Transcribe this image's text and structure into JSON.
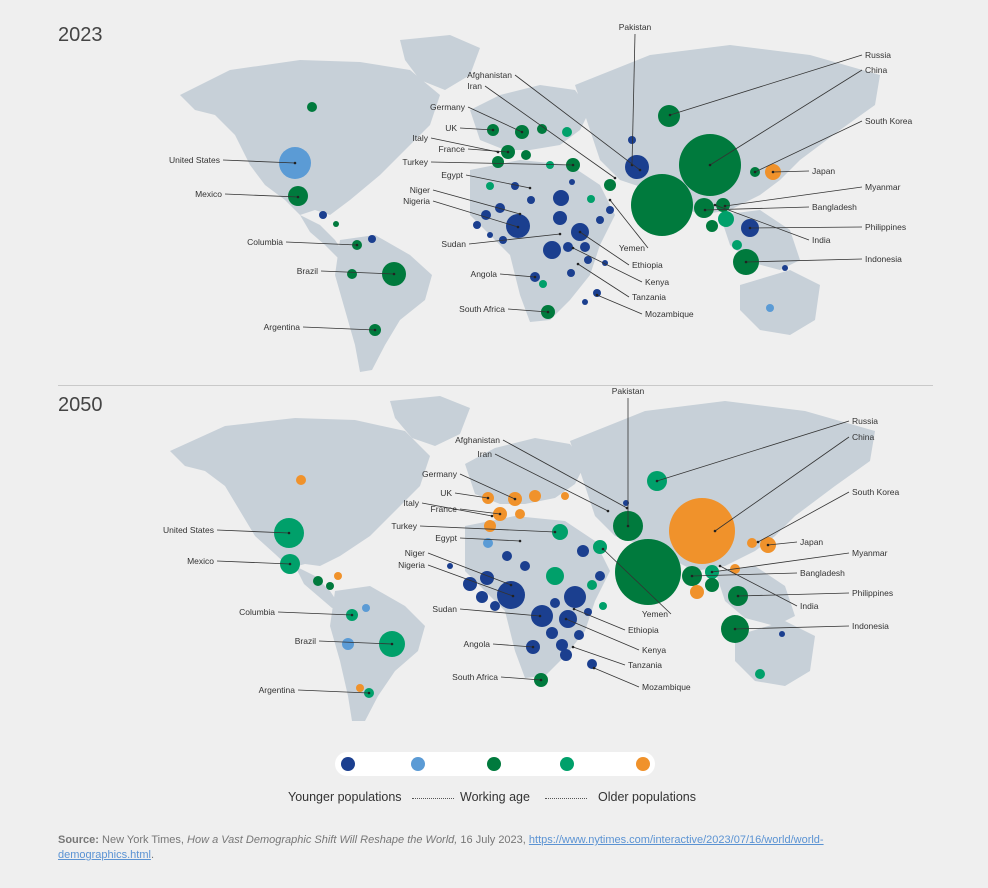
{
  "panels": [
    {
      "title": "2023",
      "labels": [
        "Pakistan",
        "Russia",
        "China",
        "Afghanistan",
        "Iran",
        "South Korea",
        "Germany",
        "UK",
        "Italy",
        "France",
        "Turkey",
        "Japan",
        "Egypt",
        "Myanmar",
        "Niger",
        "Nigeria",
        "Bangladesh",
        "Philippines",
        "Sudan",
        "India",
        "Yemen",
        "Ethiopia",
        "Indonesia",
        "Kenya",
        "Angola",
        "Tanzania",
        "South Africa",
        "Mozambique",
        "United States",
        "Mexico",
        "Columbia",
        "Brazil",
        "Argentina"
      ]
    },
    {
      "title": "2050",
      "labels": [
        "Pakistan",
        "Russia",
        "China",
        "Afghanistan",
        "Iran",
        "South Korea",
        "Germany",
        "UK",
        "Italy",
        "France",
        "Turkey",
        "Japan",
        "Egypt",
        "Myanmar",
        "Niger",
        "Nigeria",
        "Bangladesh",
        "Philippines",
        "Sudan",
        "India",
        "Yemen",
        "Ethiopia",
        "Indonesia",
        "Kenya",
        "Angola",
        "Tanzania",
        "South Africa",
        "Mozambique",
        "United States",
        "Mexico",
        "Columbia",
        "Brazil",
        "Argentina"
      ]
    }
  ],
  "legend": {
    "colors": [
      "#1b3f8f",
      "#5b9bd5",
      "#007a3d",
      "#00a06a",
      "#f0922b"
    ],
    "labels": [
      "Younger populations",
      "Working age",
      "Older populations"
    ]
  },
  "source": {
    "label": "Source:",
    "text": "New York Times,",
    "title_italic": "How a Vast Demographic Shift Will Reshape the World,",
    "date": "16 July 2023,",
    "url": "https://www.nytimes.com/interactive/2023/07/16/world/world-demographics.html",
    "end": "."
  }
}
